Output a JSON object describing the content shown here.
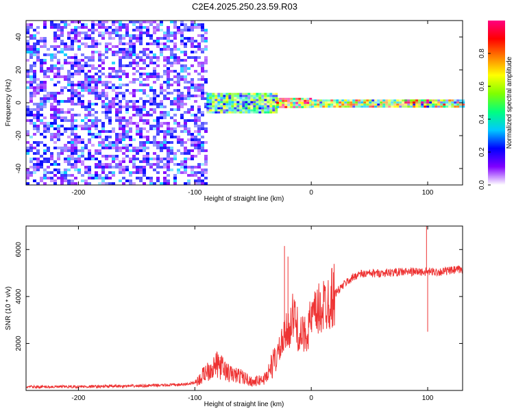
{
  "title": "C2E4.2025.250.23.59.R03",
  "chart_data": [
    {
      "type": "heatmap",
      "xlabel": "Height of straight line (km)",
      "ylabel": "Frequency (Hz)",
      "xlim": [
        -245,
        130
      ],
      "ylim": [
        -50,
        50
      ],
      "xticks": [
        -200,
        -100,
        0,
        100
      ],
      "yticks": [
        -40,
        -20,
        0,
        20,
        40
      ],
      "colorbar": {
        "label": "Normalized spectral amplitude",
        "range": [
          0,
          1
        ],
        "ticks": [
          0.0,
          0.2,
          0.4,
          0.6,
          0.8
        ],
        "tick_labels": [
          "0.0",
          "0.2",
          "0.4",
          "0.6",
          "0.8"
        ],
        "colors": [
          "#ffffff",
          "#8000ff",
          "#0000ff",
          "#00c8ff",
          "#00ff80",
          "#80ff00",
          "#ffff00",
          "#ff8000",
          "#ff0000",
          "#ff0080"
        ]
      },
      "regions": [
        {
          "x": [
            -245,
            -90
          ],
          "y": [
            -50,
            50
          ],
          "level": 0.2,
          "desc": "broadband noise"
        },
        {
          "x": [
            -90,
            -30
          ],
          "y": [
            -6,
            6
          ],
          "level": 0.45
        },
        {
          "x": [
            -30,
            0
          ],
          "y": [
            -3,
            3
          ],
          "level": 0.7
        },
        {
          "x": [
            0,
            130
          ],
          "y": [
            -2,
            2
          ],
          "level": 0.6
        },
        {
          "x": [
            80,
            100
          ],
          "y": [
            0,
            2
          ],
          "level": 0.95
        }
      ]
    },
    {
      "type": "line",
      "xlabel": "Height of straight line (km)",
      "ylabel": "SNR (10 * v/v)",
      "xlim": [
        -245,
        130
      ],
      "ylim": [
        0,
        7000
      ],
      "xticks": [
        -200,
        -100,
        0,
        100
      ],
      "yticks": [
        2000,
        4000,
        6000
      ],
      "color": "#ee3333",
      "series": [
        {
          "x": [
            -245,
            -200,
            -150,
            -110,
            -100,
            -95,
            -90,
            -80,
            -70,
            -60,
            -50,
            -40,
            -30,
            -25,
            -20,
            -15,
            -10,
            -5,
            0,
            10,
            20,
            30,
            40,
            60,
            80,
            100,
            110,
            120,
            130
          ],
          "y": [
            150,
            160,
            190,
            250,
            330,
            500,
            850,
            1100,
            700,
            600,
            350,
            500,
            1400,
            2000,
            2600,
            3200,
            2300,
            2400,
            3000,
            3600,
            4100,
            4600,
            4950,
            5000,
            5050,
            5050,
            5050,
            5100,
            5150
          ]
        }
      ],
      "spikes": [
        {
          "x": -23,
          "y": 6150
        },
        {
          "x": -20,
          "y": 5700
        },
        {
          "x": 99,
          "y": 7000
        },
        {
          "x": 100,
          "y": 2500
        }
      ]
    }
  ]
}
